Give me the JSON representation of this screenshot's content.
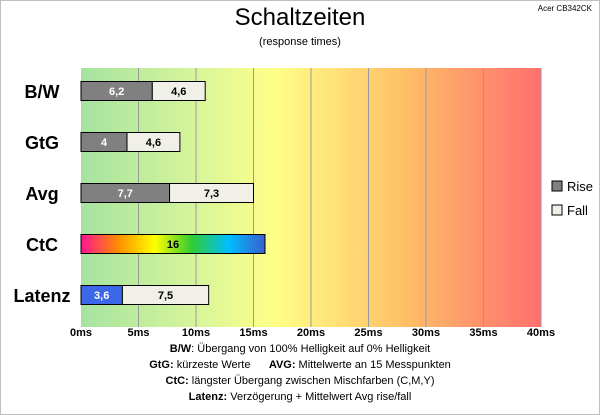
{
  "header": {
    "title": "Schaltzeiten",
    "subtitle": "(response times)",
    "model": "Acer CB342CK"
  },
  "chart_data": {
    "type": "bar",
    "orientation": "horizontal",
    "stacked": true,
    "categories": [
      "B/W",
      "GtG",
      "Avg",
      "CtC",
      "Latenz"
    ],
    "series": [
      {
        "name": "Rise",
        "values": [
          6.2,
          4,
          7.7,
          null,
          3.6
        ],
        "color": "#808080"
      },
      {
        "name": "Fall",
        "values": [
          4.6,
          4.6,
          7.3,
          null,
          7.5
        ],
        "color": "#f0f0e8"
      }
    ],
    "single_values": {
      "CtC": 16
    },
    "data_labels": {
      "Rise": [
        "6,2",
        "4",
        "7,7",
        "",
        "3,6"
      ],
      "Fall": [
        "4,6",
        "4,6",
        "7,3",
        "",
        "7,5"
      ],
      "CtC": "16"
    },
    "xlim": [
      0,
      40
    ],
    "x_ticks": [
      0,
      5,
      10,
      15,
      20,
      25,
      30,
      35,
      40
    ],
    "x_tick_labels": [
      "0ms",
      "5ms",
      "10ms",
      "15ms",
      "20ms",
      "25ms",
      "30ms",
      "35ms",
      "40ms"
    ],
    "grid": true,
    "legend_position": "right",
    "background": "gradient green-yellow-red",
    "colors": {
      "rise": "#808080",
      "fall": "#f0f0e8",
      "latenz_rise": "#3b67e8",
      "ctc_gradient": [
        "#ff1493",
        "#ff8c00",
        "#ffff00",
        "#32cd32",
        "#00bfff",
        "#3a5fcd"
      ]
    }
  },
  "notes": {
    "line1_key": "B/W",
    "line1_text": ":  Übergang von 100% Helligkeit auf 0% Helligkeit",
    "line2_key1": "GtG:",
    "line2_text1": " kürzeste  Werte",
    "line2_key2": "AVG:",
    "line2_text2": " Mittelwerte  an 15 Messpunkten",
    "line3_key": "CtC:",
    "line3_text": " längster Übergang  zwischen Mischfarben (C,M,Y)",
    "line4_key": "Latenz:",
    "line4_text": " Verzögerung  + Mittelwert Avg rise/fall"
  }
}
